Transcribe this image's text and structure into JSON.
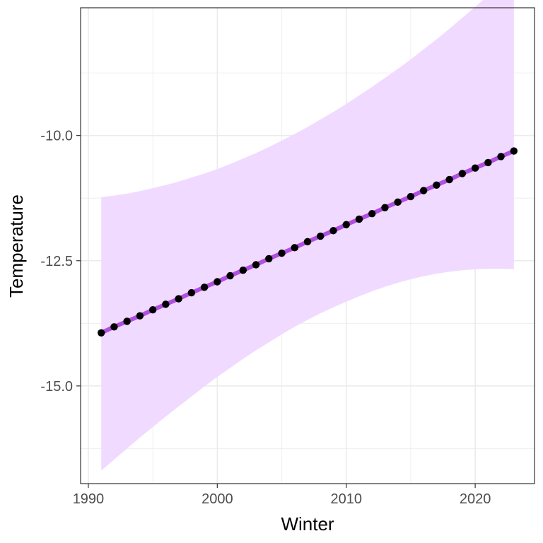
{
  "chart_data": {
    "type": "line",
    "title": "",
    "xlabel": "Winter",
    "ylabel": "Temperature",
    "xlim": [
      1989.4,
      2024.6
    ],
    "ylim": [
      -16.95,
      -7.45
    ],
    "x_ticks": [
      1990,
      2000,
      2010,
      2020
    ],
    "x_tick_labels": [
      "1990",
      "2000",
      "2010",
      "2020"
    ],
    "x_minor_ticks": [
      1995,
      2005,
      2015
    ],
    "y_ticks": [
      -15.0,
      -12.5,
      -10.0
    ],
    "y_tick_labels": [
      "-15.0",
      "-12.5",
      "-10.0"
    ],
    "y_minor_ticks": [
      -16.25,
      -13.75,
      -11.25,
      -8.75
    ],
    "grid": true,
    "legend": "none",
    "series": [
      {
        "x": [
          1991,
          1992,
          1993,
          1994,
          1995,
          1996,
          1997,
          1998,
          1999,
          2000,
          2001,
          2002,
          2003,
          2004,
          2005,
          2006,
          2007,
          2008,
          2009,
          2010,
          2011,
          2012,
          2013,
          2014,
          2015,
          2016,
          2017,
          2018,
          2019,
          2020,
          2021,
          2022,
          2023
        ],
        "y": [
          -13.94,
          -13.82,
          -13.71,
          -13.6,
          -13.48,
          -13.37,
          -13.26,
          -13.14,
          -13.03,
          -12.92,
          -12.8,
          -12.69,
          -12.58,
          -12.46,
          -12.35,
          -12.24,
          -12.12,
          -12.01,
          -11.9,
          -11.78,
          -11.67,
          -11.56,
          -11.44,
          -11.33,
          -11.22,
          -11.1,
          -10.99,
          -10.88,
          -10.76,
          -10.65,
          -10.54,
          -10.42,
          -10.31
        ],
        "ci_lower": [
          -16.69,
          -16.47,
          -16.25,
          -16.03,
          -15.82,
          -15.61,
          -15.41,
          -15.21,
          -15.01,
          -14.82,
          -14.64,
          -14.46,
          -14.29,
          -14.13,
          -13.97,
          -13.82,
          -13.68,
          -13.55,
          -13.43,
          -13.32,
          -13.21,
          -13.11,
          -13.02,
          -12.94,
          -12.87,
          -12.81,
          -12.76,
          -12.72,
          -12.69,
          -12.67,
          -12.66,
          -12.66,
          -12.67
        ]
      }
    ],
    "ci_upper": [
      -11.23,
      -11.2,
      -11.16,
      -11.11,
      -11.05,
      -10.99,
      -10.92,
      -10.84,
      -10.76,
      -10.67,
      -10.57,
      -10.46,
      -10.35,
      -10.23,
      -10.1,
      -9.97,
      -9.83,
      -9.68,
      -9.53,
      -9.37,
      -9.2,
      -9.03,
      -8.85,
      -8.67,
      -8.48,
      -8.28,
      -8.08,
      -7.87,
      -7.65,
      -7.43,
      -7.21,
      -6.98,
      -6.74
    ],
    "colors": {
      "ribbon": "#f0d8ff",
      "line": "#b050e0",
      "points": "#000000",
      "grid": "#ebebeb",
      "panel_border": "#333333",
      "tick_label": "#4d4d4d"
    }
  }
}
